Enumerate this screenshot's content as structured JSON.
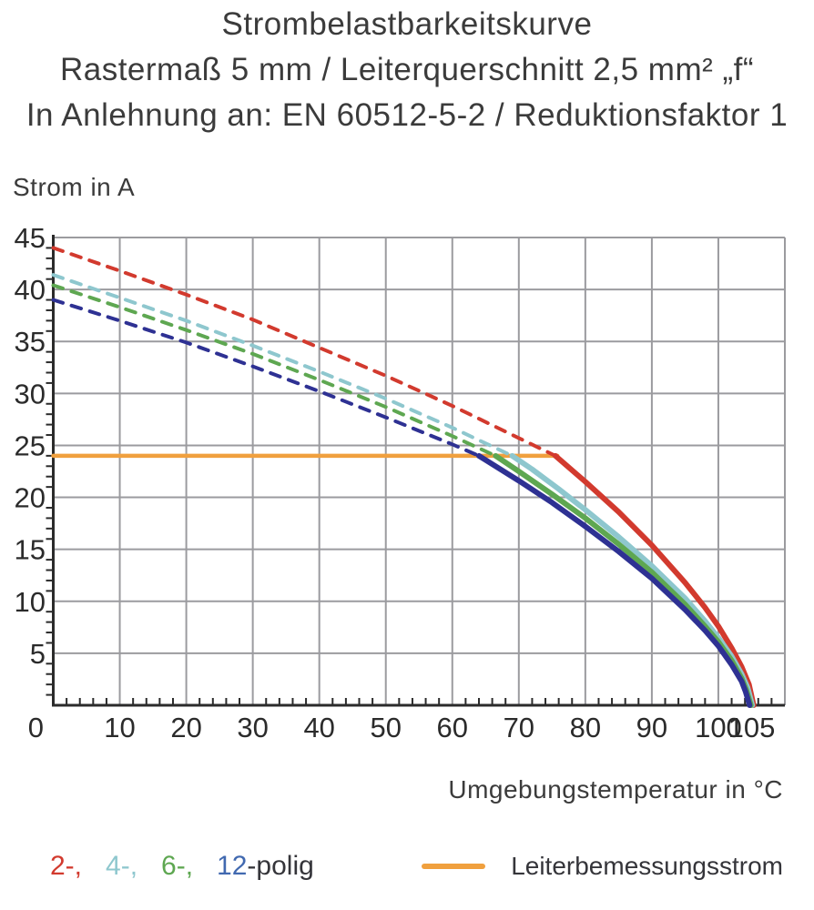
{
  "title": {
    "line1": "Strombelastbarkeitskurve",
    "line2": "Rastermaß 5 mm / Leiterquerschnitt 2,5 mm² „f“",
    "line3": "In Anlehnung an: EN 60512-5-2 / Reduktionsfaktor 1"
  },
  "chart_data": {
    "type": "line",
    "ylabel": "Strom in A",
    "xlabel": "Umgebungstemperatur in °C",
    "xlim": [
      0,
      110
    ],
    "ylim": [
      0,
      45
    ],
    "grid": true,
    "grid_color": "#9b9b9f",
    "axis_color": "#2b2b2b",
    "x_minor_step": 2,
    "y_minor_step": 1,
    "x_gridlines": [
      10,
      20,
      30,
      40,
      50,
      60,
      70,
      80,
      90,
      100,
      110
    ],
    "y_gridlines": [
      5,
      10,
      15,
      20,
      25,
      30,
      35,
      40,
      45
    ],
    "x_tick_labels": [
      {
        "value": 10,
        "label": "10"
      },
      {
        "value": 20,
        "label": "20"
      },
      {
        "value": 30,
        "label": "30"
      },
      {
        "value": 40,
        "label": "40"
      },
      {
        "value": 50,
        "label": "50"
      },
      {
        "value": 60,
        "label": "60"
      },
      {
        "value": 70,
        "label": "70"
      },
      {
        "value": 80,
        "label": "80"
      },
      {
        "value": 90,
        "label": "90"
      },
      {
        "value": 100,
        "label": "100"
      },
      {
        "value": 105,
        "label": "105"
      }
    ],
    "y_tick_labels": [
      {
        "value": 45,
        "label": "45"
      },
      {
        "value": 40,
        "label": "40"
      },
      {
        "value": 35,
        "label": "35"
      },
      {
        "value": 30,
        "label": "30"
      },
      {
        "value": 25,
        "label": "25"
      },
      {
        "value": 20,
        "label": "20"
      },
      {
        "value": 15,
        "label": "15"
      },
      {
        "value": 10,
        "label": "10"
      },
      {
        "value": 5,
        "label": "5"
      }
    ],
    "origin_label": "0",
    "series": [
      {
        "name": "2-polig",
        "color": "#d23a2e",
        "dashed": [
          [
            0,
            44
          ],
          [
            10,
            41.8
          ],
          [
            20,
            39.5
          ],
          [
            30,
            37.1
          ],
          [
            40,
            34.4
          ],
          [
            50,
            31.7
          ],
          [
            60,
            28.8
          ],
          [
            70,
            25.7
          ],
          [
            75.5,
            24
          ]
        ],
        "solid": [
          [
            75.5,
            24
          ],
          [
            80,
            21.5
          ],
          [
            85,
            18.6
          ],
          [
            90,
            15.4
          ],
          [
            95,
            11.8
          ],
          [
            98,
            9.4
          ],
          [
            100,
            7.6
          ],
          [
            102,
            5.5
          ],
          [
            103.5,
            3.7
          ],
          [
            104.6,
            2
          ],
          [
            105.3,
            0
          ]
        ]
      },
      {
        "name": "4-polig",
        "color": "#8ec7ce",
        "dashed": [
          [
            0,
            41.4
          ],
          [
            10,
            39.2
          ],
          [
            20,
            37
          ],
          [
            30,
            34.6
          ],
          [
            40,
            32.1
          ],
          [
            50,
            29.5
          ],
          [
            60,
            26.7
          ],
          [
            69,
            24
          ]
        ],
        "solid": [
          [
            69,
            24
          ],
          [
            72,
            22.7
          ],
          [
            76,
            20.8
          ],
          [
            80,
            18.8
          ],
          [
            85,
            16.2
          ],
          [
            90,
            13.4
          ],
          [
            95,
            10.3
          ],
          [
            98,
            8.1
          ],
          [
            100,
            6.5
          ],
          [
            102,
            4.7
          ],
          [
            103.5,
            3
          ],
          [
            104.4,
            1.7
          ],
          [
            105.1,
            0
          ]
        ]
      },
      {
        "name": "6-polig",
        "color": "#5ea751",
        "dashed": [
          [
            0,
            40.4
          ],
          [
            10,
            38.3
          ],
          [
            20,
            36.1
          ],
          [
            30,
            33.8
          ],
          [
            40,
            31.3
          ],
          [
            50,
            28.7
          ],
          [
            60,
            25.9
          ],
          [
            66.5,
            24
          ]
        ],
        "solid": [
          [
            66.5,
            24
          ],
          [
            70,
            22.5
          ],
          [
            75,
            20.3
          ],
          [
            80,
            18
          ],
          [
            85,
            15.5
          ],
          [
            90,
            12.8
          ],
          [
            95,
            9.7
          ],
          [
            98,
            7.6
          ],
          [
            100,
            6.1
          ],
          [
            102,
            4.3
          ],
          [
            103.5,
            2.6
          ],
          [
            104.2,
            1.5
          ],
          [
            104.9,
            0
          ]
        ]
      },
      {
        "name": "12-polig",
        "color": "#2e3193",
        "dashed": [
          [
            0,
            39
          ],
          [
            10,
            37
          ],
          [
            20,
            34.9
          ],
          [
            30,
            32.6
          ],
          [
            40,
            30.2
          ],
          [
            50,
            27.7
          ],
          [
            60,
            25.1
          ],
          [
            64,
            24
          ]
        ],
        "solid": [
          [
            64,
            24
          ],
          [
            70,
            21.6
          ],
          [
            75,
            19.5
          ],
          [
            80,
            17.2
          ],
          [
            85,
            14.8
          ],
          [
            90,
            12.2
          ],
          [
            95,
            9.2
          ],
          [
            98,
            7.2
          ],
          [
            100,
            5.7
          ],
          [
            102,
            3.9
          ],
          [
            103.5,
            2.3
          ],
          [
            104.1,
            1.3
          ],
          [
            104.7,
            0
          ]
        ]
      }
    ],
    "reference_line": {
      "label": "Leiterbemessungsstrom",
      "color": "#f0a03e",
      "current": 24,
      "x_start": 0,
      "x_end": 75.8
    }
  },
  "legend": {
    "items": [
      {
        "label": "2-,",
        "color": "#d23a2e"
      },
      {
        "label": "4-,",
        "color": "#8ec7ce"
      },
      {
        "label": "6-,",
        "color": "#5ea751"
      },
      {
        "label": "12",
        "color": "#4169b0"
      }
    ],
    "suffix": "-polig",
    "reference": {
      "label": "Leiterbemessungsstrom",
      "color": "#f0a03e"
    }
  }
}
